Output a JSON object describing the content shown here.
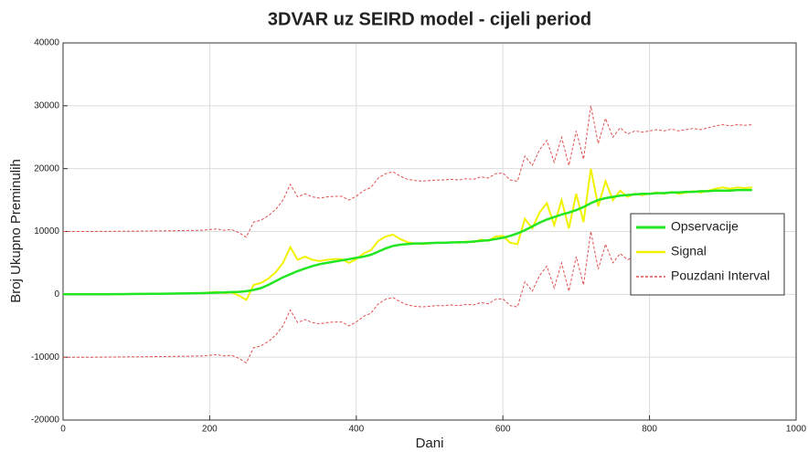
{
  "chart_data": {
    "type": "line",
    "title": "3DVAR uz SEIRD model - cijeli period",
    "x_label": "Dani",
    "y_label": "Broj Ukupno Preminulih",
    "xlim": [
      0,
      1000
    ],
    "ylim": [
      -20000,
      40000
    ],
    "xticks": [
      0,
      200,
      400,
      600,
      800,
      1000
    ],
    "yticks": [
      -20000,
      -10000,
      0,
      10000,
      20000,
      30000,
      40000
    ],
    "grid": true,
    "legend": "east",
    "x": [
      0,
      10,
      20,
      30,
      40,
      50,
      60,
      70,
      80,
      90,
      100,
      110,
      120,
      130,
      140,
      150,
      160,
      170,
      180,
      190,
      200,
      210,
      220,
      230,
      240,
      250,
      260,
      270,
      280,
      290,
      300,
      310,
      320,
      330,
      340,
      350,
      360,
      370,
      380,
      390,
      400,
      410,
      420,
      430,
      440,
      450,
      460,
      470,
      480,
      490,
      500,
      510,
      520,
      530,
      540,
      550,
      560,
      570,
      580,
      590,
      600,
      610,
      620,
      630,
      640,
      650,
      660,
      670,
      680,
      690,
      700,
      710,
      720,
      730,
      740,
      750,
      760,
      770,
      780,
      790,
      800,
      810,
      820,
      830,
      840,
      850,
      860,
      870,
      880,
      890,
      900,
      910,
      920,
      930,
      940
    ],
    "series": [
      {
        "name": "Opservacije",
        "color": "#22e622",
        "width": 2.5,
        "dashed": false,
        "values": [
          0,
          0,
          0,
          0,
          0,
          10,
          20,
          30,
          40,
          50,
          60,
          70,
          80,
          90,
          100,
          120,
          140,
          160,
          180,
          200,
          230,
          260,
          300,
          350,
          400,
          500,
          700,
          1000,
          1500,
          2100,
          2700,
          3200,
          3700,
          4100,
          4500,
          4800,
          5000,
          5200,
          5400,
          5600,
          5800,
          6000,
          6300,
          6800,
          7300,
          7700,
          7900,
          8000,
          8100,
          8100,
          8150,
          8200,
          8200,
          8250,
          8300,
          8300,
          8400,
          8500,
          8600,
          8800,
          9000,
          9300,
          9700,
          10200,
          10800,
          11400,
          11900,
          12300,
          12700,
          13000,
          13400,
          13900,
          14500,
          15000,
          15300,
          15500,
          15700,
          15800,
          15900,
          16000,
          16000,
          16100,
          16100,
          16200,
          16200,
          16300,
          16300,
          16400,
          16400,
          16500,
          16500,
          16500,
          16600,
          16600,
          16600
        ]
      },
      {
        "name": "Signal",
        "color": "#f2f200",
        "width": 2,
        "dashed": false,
        "values": [
          0,
          0,
          0,
          0,
          0,
          10,
          20,
          30,
          40,
          50,
          60,
          70,
          80,
          90,
          100,
          120,
          140,
          160,
          180,
          200,
          300,
          400,
          200,
          300,
          -200,
          -900,
          1500,
          1800,
          2500,
          3500,
          5000,
          7500,
          5500,
          6000,
          5500,
          5300,
          5500,
          5600,
          5600,
          5000,
          5600,
          6500,
          7000,
          8500,
          9200,
          9500,
          8800,
          8300,
          8100,
          8000,
          8100,
          8200,
          8200,
          8300,
          8200,
          8400,
          8300,
          8700,
          8500,
          9200,
          9300,
          8200,
          8000,
          12000,
          10500,
          13000,
          14500,
          11000,
          15000,
          10500,
          16000,
          11500,
          20000,
          14000,
          18000,
          15000,
          16500,
          15500,
          16000,
          15800,
          16000,
          16200,
          16000,
          16300,
          16000,
          16200,
          16400,
          16200,
          16500,
          16800,
          17000,
          16800,
          17000,
          16900,
          17000
        ]
      },
      {
        "name": "Pouzdani Interval",
        "color": "#e05050",
        "width": 1,
        "dashed": true,
        "values": [
          10000,
          10000,
          10000,
          10000,
          10000,
          10010,
          10020,
          10030,
          10040,
          10050,
          10060,
          10070,
          10080,
          10090,
          10100,
          10120,
          10140,
          10160,
          10180,
          10200,
          10300,
          10400,
          10200,
          10300,
          9800,
          9100,
          11500,
          11800,
          12500,
          13500,
          15000,
          17500,
          15500,
          16000,
          15500,
          15300,
          15500,
          15600,
          15600,
          15000,
          15600,
          16500,
          17000,
          18500,
          19200,
          19500,
          18800,
          18300,
          18100,
          18000,
          18100,
          18200,
          18200,
          18300,
          18200,
          18400,
          18300,
          18700,
          18500,
          19200,
          19300,
          18200,
          18000,
          22000,
          20500,
          23000,
          24500,
          21000,
          25000,
          20500,
          26000,
          21500,
          30000,
          24000,
          28000,
          25000,
          26500,
          25500,
          26000,
          25800,
          26000,
          26200,
          26000,
          26300,
          26000,
          26200,
          26400,
          26200,
          26500,
          26800,
          27000,
          26800,
          27000,
          26900,
          27000
        ],
        "lower": [
          -10000,
          -10000,
          -10000,
          -10000,
          -10000,
          -9990,
          -9980,
          -9970,
          -9960,
          -9950,
          -9940,
          -9930,
          -9920,
          -9910,
          -9900,
          -9880,
          -9860,
          -9840,
          -9820,
          -9800,
          -9700,
          -9600,
          -9800,
          -9700,
          -10200,
          -10900,
          -8500,
          -8200,
          -7500,
          -6500,
          -5000,
          -2500,
          -4500,
          -4000,
          -4500,
          -4700,
          -4500,
          -4400,
          -4400,
          -5000,
          -4400,
          -3500,
          -3000,
          -1500,
          -800,
          -500,
          -1200,
          -1700,
          -1900,
          -2000,
          -1900,
          -1800,
          -1800,
          -1700,
          -1800,
          -1600,
          -1700,
          -1300,
          -1500,
          -800,
          -700,
          -1800,
          -2000,
          2000,
          500,
          3000,
          4500,
          1000,
          5000,
          500,
          6000,
          1500,
          10000,
          4000,
          8000,
          5000,
          6500,
          5500,
          6000,
          5800,
          6000,
          6200,
          6000,
          6300,
          6000,
          6200,
          6400,
          6200,
          6500,
          6800,
          7000,
          6800,
          7000,
          6900,
          7000
        ]
      }
    ]
  }
}
